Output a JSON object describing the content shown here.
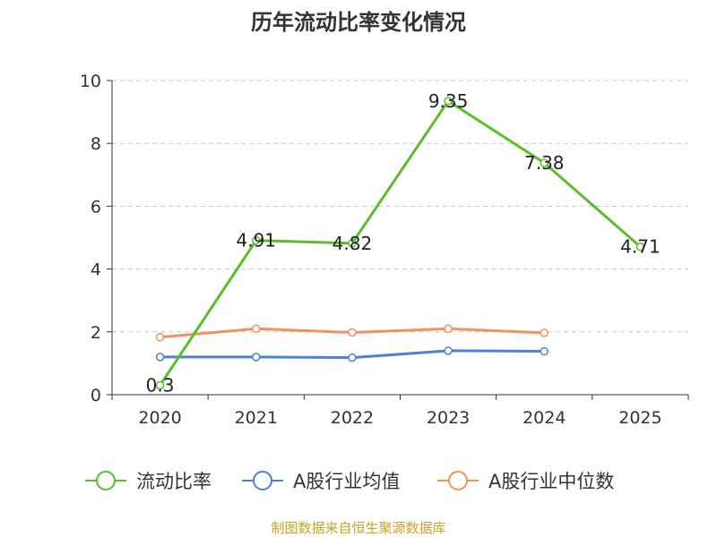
{
  "chart_data": {
    "type": "line",
    "title": "历年流动比率变化情况",
    "categories": [
      "2020",
      "2021",
      "2022",
      "2023",
      "2024",
      "2025"
    ],
    "y_ticks": [
      "0",
      "2",
      "4",
      "6",
      "8",
      "10"
    ],
    "ylim": [
      0,
      10
    ],
    "grid": true,
    "legend_position": "bottom",
    "series": [
      {
        "name": "流动比率",
        "color": "#5cbd2a",
        "values": [
          0.3,
          4.91,
          4.82,
          9.35,
          7.38,
          4.71
        ],
        "labels": [
          "0.3",
          "4.91",
          "4.82",
          "9.35",
          "7.38",
          "4.71"
        ]
      },
      {
        "name": "A股行业均值",
        "color": "#4e7fd9",
        "values": [
          1.2,
          1.2,
          1.18,
          1.4,
          1.38,
          null
        ]
      },
      {
        "name": "A股行业中位数",
        "color": "#f4925e",
        "values": [
          1.83,
          2.1,
          1.98,
          2.1,
          1.97,
          null
        ]
      }
    ],
    "source": "制图数据来自恒生聚源数据库"
  }
}
